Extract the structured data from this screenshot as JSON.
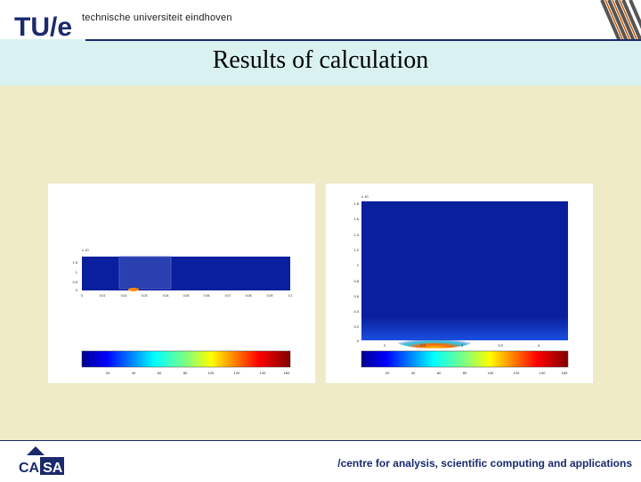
{
  "header": {
    "logo_text": "TU/e",
    "university": "technische universiteit eindhoven"
  },
  "slide": {
    "title": "Results of calculation"
  },
  "plot_left": {
    "y_ticks": [
      "1.5",
      "1",
      "0.5",
      "0"
    ],
    "x_ticks": [
      "0",
      "0.01",
      "0.02",
      "0.03",
      "0.04",
      "0.05",
      "0.06",
      "0.07",
      "0.08",
      "0.09",
      "0.1"
    ],
    "scale_label": "x 10",
    "colorbar_ticks": [
      "20",
      "40",
      "60",
      "80",
      "100",
      "120",
      "140",
      "160"
    ]
  },
  "plot_right": {
    "y_ticks": [
      "1.8",
      "1.6",
      "1.4",
      "1.2",
      "1",
      "0.8",
      "0.6",
      "0.4",
      "0.2",
      "0"
    ],
    "x_ticks": [
      "2",
      "2.5",
      "3",
      "3.5",
      "4"
    ],
    "scale_label": "x 10",
    "colorbar_ticks": [
      "20",
      "40",
      "60",
      "80",
      "100",
      "120",
      "140",
      "160"
    ]
  },
  "footer": {
    "logo_text": "CASA",
    "tagline": "/centre for analysis, scientific computing and applications"
  },
  "colors": {
    "navy": "#1a2a6c",
    "plot_blue": "#0a1f9e",
    "background": "#efebc6",
    "title_band": "#d9f1f1"
  }
}
